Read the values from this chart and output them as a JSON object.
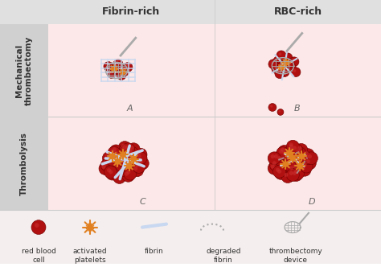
{
  "col_labels": [
    "Fibrin-rich",
    "RBC-rich"
  ],
  "row_labels": [
    "Mechanical\nthrombectomy",
    "Thrombolysis"
  ],
  "panel_labels": [
    "A",
    "B",
    "C",
    "D"
  ],
  "legend_items": [
    "red blood\ncell",
    "activated\nplatelets",
    "fibrin",
    "degraded\nfibrin",
    "thrombectomy\ndevice"
  ],
  "bg_color_pink": "#fce8e8",
  "bg_color_header": "#e0e0e0",
  "bg_color_sidebar": "#d0d0d0",
  "bg_legend": "#f5eeee",
  "rbc_color": "#b01010",
  "rbc_highlight": "#cc3030",
  "platelet_color": "#e08020",
  "fibrin_color": "#c8d8f0",
  "fibrin_stroke": "#a8b8d8",
  "device_color": "#aaaaaa",
  "text_color": "#333333",
  "label_color": "#666666"
}
